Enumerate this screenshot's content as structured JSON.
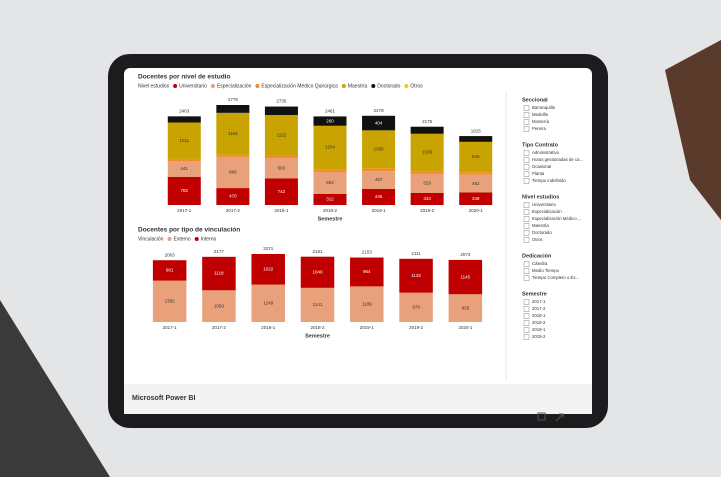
{
  "chart_data": [
    {
      "type": "stacked-bar",
      "title": "Docentes por nivel de estudio",
      "legend_title": "Nivel estudios",
      "x_label": "Semestre",
      "categories": [
        "2017-1",
        "2017-2",
        "2018-1",
        "2018-2",
        "2019-1",
        "2019-2",
        "2020-1"
      ],
      "series": [
        {
          "name": "Universitario",
          "color": "#c00000",
          "values": [
            782,
            470,
            742,
            312,
            445,
            334,
            348
          ]
        },
        {
          "name": "Especialización",
          "color": "#e8a17a",
          "values": [
            441,
            866,
            563,
            604,
            497,
            529,
            492
          ]
        },
        {
          "name": "Especialización Médico Quirúrgica",
          "color": "#f28c28",
          "values": [
            58,
            60,
            72,
            81,
            76,
            77,
            70
          ]
        },
        {
          "name": "Maestría",
          "color": "#c9a400",
          "values": [
            1011,
            1164,
            1122,
            1204,
            1056,
            1039,
            845
          ]
        },
        {
          "name": "Doctorado",
          "color": "#111111",
          "values": [
            171,
            218,
            236,
            260,
            404,
            196,
            160
          ]
        },
        {
          "name": "Otros",
          "color": "#f2c80f",
          "values": [
            null,
            null,
            null,
            null,
            null,
            null,
            null
          ]
        }
      ],
      "totals": [
        2463,
        2778,
        2735,
        2461,
        2478,
        2175,
        1915
      ]
    },
    {
      "type": "stacked-bar",
      "title": "Docentes por tipo de vinculación",
      "legend_title": "Vinculación",
      "x_label": "Semestre",
      "categories": [
        "2017-1",
        "2017-2",
        "2018-1",
        "2018-2",
        "2019-1",
        "2019-2",
        "2020-1"
      ],
      "series": [
        {
          "name": "Externo",
          "color": "#e8a17a",
          "values": [
            1382,
            1059,
            1249,
            1141,
            1189,
            979,
            928
          ]
        },
        {
          "name": "Interno",
          "color": "#c00000",
          "values": [
            681,
            1118,
            1022,
            1040,
            964,
            1132,
            1145
          ]
        }
      ],
      "totals": [
        2063,
        2177,
        2271,
        2181,
        2153,
        2111,
        2073
      ]
    }
  ],
  "slicers": [
    {
      "title": "Seccional",
      "items": [
        "Barranquilla",
        "Medellín",
        "Montería",
        "Pereira"
      ]
    },
    {
      "title": "Tipo Contrato",
      "items": [
        "Administrativo",
        "Horas gestionadas de ca...",
        "Ocasional",
        "Planta",
        "Tiempo indefinido"
      ]
    },
    {
      "title": "Nivel estudios",
      "items": [
        "Universitario",
        "Especialización",
        "Especialización Médico ...",
        "Maestría",
        "Doctorado",
        "Otros"
      ]
    },
    {
      "title": "Dedicación",
      "items": [
        "Cátedra",
        "Medio Tiempo",
        "Tiempo Completo o Ex..."
      ]
    },
    {
      "title": "Semestre",
      "items": [
        "2017-1",
        "2017-2",
        "2018-1",
        "2018-2",
        "2019-1",
        "2019-2"
      ]
    }
  ],
  "footer": {
    "brand": "Microsoft Power BI"
  }
}
